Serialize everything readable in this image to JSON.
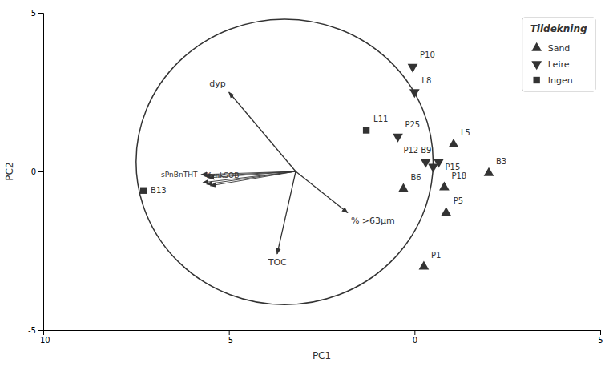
{
  "chart_data": {
    "type": "biplot",
    "xlabel": "PC1",
    "ylabel": "PC2",
    "xlim": [
      -10,
      5
    ],
    "ylim": [
      -5,
      5
    ],
    "xticks": [
      -10,
      -5,
      0,
      5
    ],
    "yticks": [
      -5,
      0,
      5
    ],
    "legend": "upper right",
    "legend_title": "Tildekning",
    "circle": {
      "x": -3.5,
      "y": 0.3,
      "rx": 4.0,
      "ry": 4.5
    },
    "origin": {
      "x": -3.2,
      "y": 0.0
    },
    "arrows": {
      "labels": [
        "dyp",
        "TOC",
        "% >63μm"
      ],
      "dx": [
        -1.8,
        -0.5,
        1.4
      ],
      "dy": [
        2.5,
        -2.6,
        -1.3
      ]
    },
    "cluster_arrows": [
      {
        "label": "sPnBnTHT",
        "dx": [
          -2.55,
          -2.45,
          -2.35
        ],
        "dy": [
          -0.1,
          -0.15,
          -0.2
        ]
      },
      {
        "label": "KvnkSOB",
        "dx": [
          -2.5,
          -2.4,
          -2.3
        ],
        "dy": [
          -0.35,
          -0.4,
          -0.45
        ]
      }
    ],
    "series": [
      {
        "name": "Sand",
        "marker": "triangle-up",
        "labels": [
          "B6",
          "B3",
          "P18",
          "P5",
          "P1",
          "L5"
        ],
        "x": [
          -0.3,
          2.0,
          0.8,
          0.85,
          0.25,
          1.05
        ],
        "y": [
          -0.55,
          -0.05,
          -0.5,
          -1.3,
          -3.0,
          0.85
        ]
      },
      {
        "name": "Leire",
        "marker": "triangle-down",
        "labels": [
          "P10",
          "L8",
          "P25",
          "P12",
          "P15",
          "B9"
        ],
        "x": [
          -0.05,
          0.0,
          -0.45,
          0.3,
          0.5,
          0.65
        ],
        "y": [
          3.3,
          2.5,
          1.1,
          0.3,
          0.15,
          0.3
        ]
      },
      {
        "name": "Ingen",
        "marker": "square",
        "labels": [
          "L11",
          "B13"
        ],
        "x": [
          -1.3,
          -7.3
        ],
        "y": [
          1.3,
          -0.6
        ]
      }
    ]
  }
}
